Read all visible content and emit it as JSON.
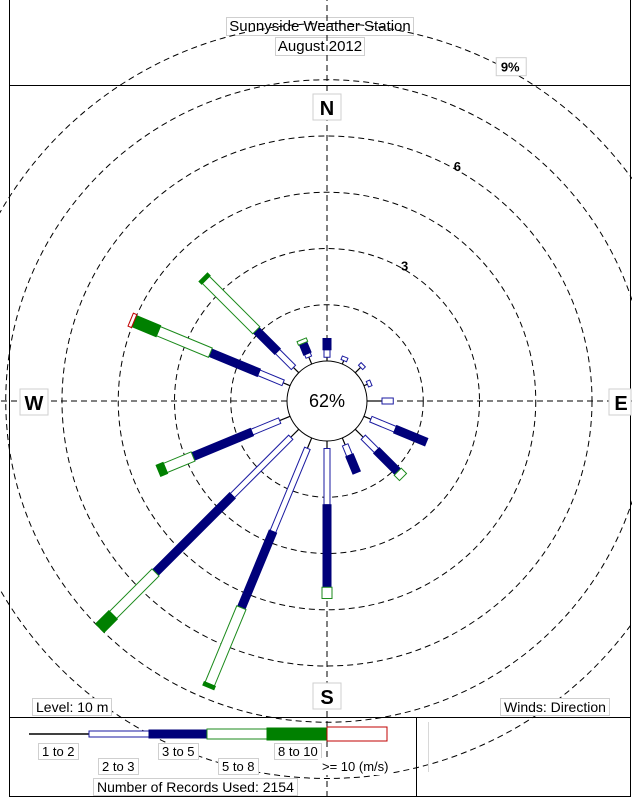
{
  "header": {
    "title_line1": "Sunnyside Weather Station",
    "title_line2": "August 2012"
  },
  "footer": {
    "level": "Level: 10 m",
    "winds": "Winds: Direction",
    "records": "Number of Records Used: 2154"
  },
  "legend": {
    "bins": [
      {
        "label": "1 to 2",
        "color": "#000000",
        "style": "line"
      },
      {
        "label": "2 to 3",
        "color": "#1a1aa0",
        "style": "open"
      },
      {
        "label": "3 to 5",
        "color": "#00007a",
        "style": "filled"
      },
      {
        "label": "5 to 8",
        "color": "#1b8a1b",
        "style": "open"
      },
      {
        "label": "8 to 10",
        "color": "#008000",
        "style": "filled"
      },
      {
        "label": ">= 10 (m/s)",
        "color": "#c00000",
        "style": "open"
      }
    ]
  },
  "chart_data": {
    "type": "windrose",
    "calm_percent": "62%",
    "compass": {
      "N": "N",
      "E": "E",
      "S": "S",
      "W": "W"
    },
    "ring_labels": [
      {
        "value": 3,
        "label": "3"
      },
      {
        "value": 6,
        "label": "6"
      },
      {
        "value": 9,
        "label": "9%"
      }
    ],
    "speed_bins": [
      "1 to 2",
      "2 to 3",
      "3 to 5",
      "5 to 8",
      "8 to 10",
      ">= 10 (m/s)"
    ],
    "directions_deg": [
      0,
      22.5,
      45,
      67.5,
      90,
      112.5,
      135,
      157.5,
      180,
      202.5,
      225,
      247.5,
      270,
      292.5,
      315,
      337.5
    ],
    "frequency_percent_by_direction": [
      [
        0.1,
        0.2,
        0.3,
        0.0,
        0.0,
        0.0
      ],
      [
        0.1,
        0.1,
        0.0,
        0.0,
        0.0,
        0.0
      ],
      [
        0.2,
        0.1,
        0.0,
        0.0,
        0.0,
        0.0
      ],
      [
        0.1,
        0.1,
        0.0,
        0.0,
        0.0,
        0.0
      ],
      [
        0.4,
        0.3,
        0.0,
        0.0,
        0.0,
        0.0
      ],
      [
        0.2,
        0.7,
        0.9,
        0.0,
        0.0,
        0.0
      ],
      [
        0.3,
        0.5,
        0.8,
        0.2,
        0.0,
        0.0
      ],
      [
        0.2,
        0.3,
        0.5,
        0.0,
        0.0,
        0.0
      ],
      [
        0.2,
        1.5,
        2.2,
        0.3,
        0.0,
        0.0
      ],
      [
        0.3,
        2.4,
        2.2,
        2.2,
        0.1,
        0.0
      ],
      [
        0.3,
        2.2,
        2.9,
        1.6,
        0.5,
        0.0
      ],
      [
        0.3,
        0.8,
        1.7,
        0.8,
        0.2,
        0.0
      ],
      [
        0.0,
        0.0,
        0.0,
        0.0,
        0.0,
        0.0
      ],
      [
        0.2,
        0.7,
        1.4,
        1.5,
        0.7,
        0.1
      ],
      [
        0.2,
        0.6,
        0.8,
        1.9,
        0.1,
        0.0
      ],
      [
        0.2,
        0.1,
        0.3,
        0.1,
        0.0,
        0.0
      ]
    ]
  }
}
